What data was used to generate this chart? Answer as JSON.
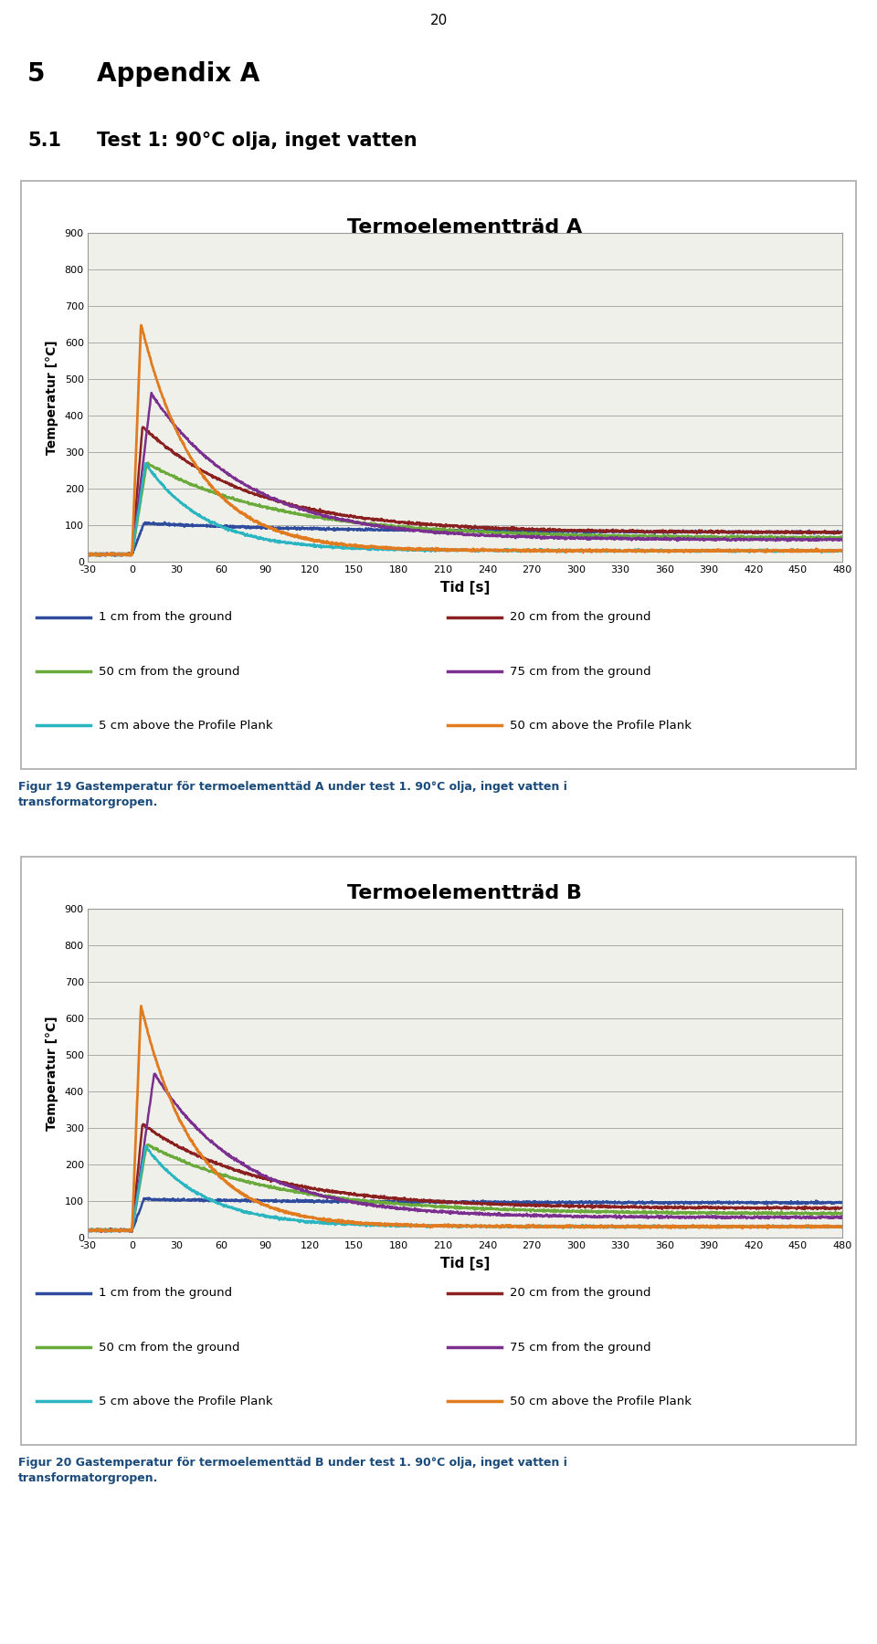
{
  "chart_A_title": "Termoelementträd A",
  "chart_B_title": "Termoelementträd B",
  "xlabel": "Tid [s]",
  "ylabel": "Temperatur [°C]",
  "xlim": [
    -30,
    480
  ],
  "ylim": [
    0,
    900
  ],
  "yticks": [
    0,
    100,
    200,
    300,
    400,
    500,
    600,
    700,
    800,
    900
  ],
  "xticks": [
    -30,
    0,
    30,
    60,
    90,
    120,
    150,
    180,
    210,
    240,
    270,
    300,
    330,
    360,
    390,
    420,
    450,
    480
  ],
  "page_number": "20",
  "section_num": "5",
  "section_title": "Appendix A",
  "subsection_num": "5.1",
  "subsection_title": "Test 1: 90°C olja, inget vatten",
  "caption_A_line1": "Figur 19 Gastemperatur för termoelementtäd A under test 1. 90°C olja, inget vatten i",
  "caption_A_line2": "transformatorgropen.",
  "caption_B_line1": "Figur 20 Gastemperatur för termoelementtäd B under test 1. 90°C olja, inget vatten i",
  "caption_B_line2": "transformatorgropen.",
  "legend_labels": [
    "1 cm from the ground",
    "20 cm from the ground",
    "50 cm from the ground",
    "75 cm from the ground",
    "5 cm above the Profile Plank",
    "50 cm above the Profile Plank"
  ],
  "line_colors": [
    "#2e4b9e",
    "#8b2020",
    "#6aaa3a",
    "#7b2f8e",
    "#2ab5c0",
    "#e07b20"
  ],
  "line_widths": [
    1.8,
    1.8,
    1.8,
    1.8,
    1.8,
    2.0
  ],
  "background_color": "#ffffff",
  "grid_color": "#aaaaaa",
  "chart_face_color": "#f0f0eb",
  "chart_border_color": "#999999",
  "peaks_A": [
    105,
    370,
    270,
    460,
    270,
    650
  ],
  "peaks_B": [
    105,
    310,
    255,
    450,
    250,
    635
  ],
  "t_peaks_A": [
    8,
    7,
    10,
    13,
    9,
    6
  ],
  "t_peaks_B": [
    8,
    7,
    10,
    15,
    9,
    6
  ],
  "t_decays_A": [
    130,
    75,
    90,
    65,
    40,
    38
  ],
  "t_decays_B": [
    140,
    80,
    88,
    60,
    40,
    36
  ],
  "base_vals": [
    20,
    20,
    20,
    20,
    20,
    20
  ],
  "t_starts": [
    0,
    0,
    0,
    0,
    0,
    0
  ],
  "late_vals_A": [
    80,
    80,
    65,
    60,
    30,
    30
  ],
  "late_vals_B": [
    95,
    80,
    65,
    55,
    30,
    30
  ]
}
